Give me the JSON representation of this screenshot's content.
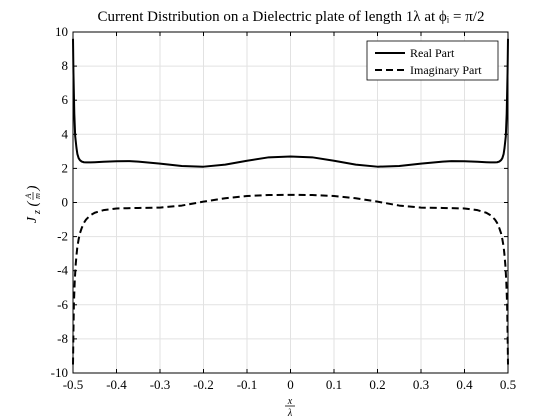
{
  "chart_data": {
    "type": "line",
    "title": "Current Distribution on a Dielectric plate of length 1λ at ϕᵢ = π/2",
    "xlabel": {
      "numerator": "x",
      "denominator": "λ"
    },
    "ylabel": "J_z (A/m)",
    "ylabel_parts": {
      "base": "J",
      "sub": "z",
      "paren_open": "(",
      "num": "A",
      "den": "m",
      "paren_close": ")"
    },
    "xlim": [
      -0.5,
      0.5
    ],
    "ylim": [
      -10,
      10
    ],
    "xticks": [
      -0.5,
      -0.4,
      -0.3,
      -0.2,
      -0.1,
      0,
      0.1,
      0.2,
      0.3,
      0.4,
      0.5
    ],
    "xtick_labels": [
      "-0.5",
      "-0.4",
      "-0.3",
      "-0.2",
      "-0.1",
      "0",
      "0.1",
      "0.2",
      "0.3",
      "0.4",
      "0.5"
    ],
    "yticks": [
      -10,
      -8,
      -6,
      -4,
      -2,
      0,
      2,
      4,
      6,
      8,
      10
    ],
    "ytick_labels": [
      "-10",
      "-8",
      "-6",
      "-4",
      "-2",
      "0",
      "2",
      "4",
      "6",
      "8",
      "10"
    ],
    "grid": true,
    "legend_position": "top-right",
    "series": [
      {
        "name": "Real Part",
        "style": "solid",
        "color": "#000000",
        "x": [
          -0.5,
          -0.499,
          -0.497,
          -0.495,
          -0.492,
          -0.49,
          -0.487,
          -0.484,
          -0.48,
          -0.475,
          -0.47,
          -0.46,
          -0.45,
          -0.43,
          -0.4,
          -0.37,
          -0.35,
          -0.3,
          -0.25,
          -0.2,
          -0.15,
          -0.1,
          -0.05,
          0,
          0.05,
          0.1,
          0.15,
          0.2,
          0.25,
          0.3,
          0.35,
          0.37,
          0.4,
          0.43,
          0.45,
          0.46,
          0.47,
          0.475,
          0.48,
          0.484,
          0.487,
          0.49,
          0.492,
          0.495,
          0.497,
          0.499,
          0.5
        ],
        "y": [
          9.6,
          7.6,
          5.2,
          3.9,
          3.2,
          2.85,
          2.6,
          2.48,
          2.4,
          2.36,
          2.35,
          2.35,
          2.36,
          2.39,
          2.42,
          2.43,
          2.4,
          2.28,
          2.14,
          2.1,
          2.22,
          2.45,
          2.65,
          2.7,
          2.65,
          2.45,
          2.22,
          2.1,
          2.14,
          2.28,
          2.4,
          2.43,
          2.42,
          2.39,
          2.36,
          2.35,
          2.35,
          2.36,
          2.4,
          2.48,
          2.6,
          2.85,
          3.2,
          3.9,
          5.2,
          7.6,
          9.6
        ]
      },
      {
        "name": "Imaginary Part",
        "style": "dashed",
        "color": "#000000",
        "x": [
          -0.5,
          -0.499,
          -0.498,
          -0.496,
          -0.494,
          -0.492,
          -0.49,
          -0.487,
          -0.484,
          -0.48,
          -0.475,
          -0.47,
          -0.46,
          -0.45,
          -0.43,
          -0.4,
          -0.35,
          -0.3,
          -0.25,
          -0.2,
          -0.15,
          -0.1,
          -0.05,
          0,
          0.05,
          0.1,
          0.15,
          0.2,
          0.25,
          0.3,
          0.35,
          0.4,
          0.43,
          0.45,
          0.46,
          0.47,
          0.475,
          0.48,
          0.484,
          0.487,
          0.49,
          0.492,
          0.494,
          0.496,
          0.498,
          0.499,
          0.5
        ],
        "y": [
          -9.5,
          -7.5,
          -6.0,
          -4.6,
          -3.7,
          -3.1,
          -2.6,
          -2.15,
          -1.8,
          -1.5,
          -1.2,
          -1.0,
          -0.75,
          -0.6,
          -0.45,
          -0.35,
          -0.32,
          -0.3,
          -0.18,
          0.05,
          0.25,
          0.38,
          0.44,
          0.45,
          0.44,
          0.38,
          0.25,
          0.05,
          -0.18,
          -0.3,
          -0.32,
          -0.35,
          -0.45,
          -0.6,
          -0.75,
          -1.0,
          -1.2,
          -1.5,
          -1.8,
          -2.15,
          -2.6,
          -3.1,
          -3.7,
          -4.6,
          -6.0,
          -7.5,
          -9.5
        ]
      }
    ]
  }
}
